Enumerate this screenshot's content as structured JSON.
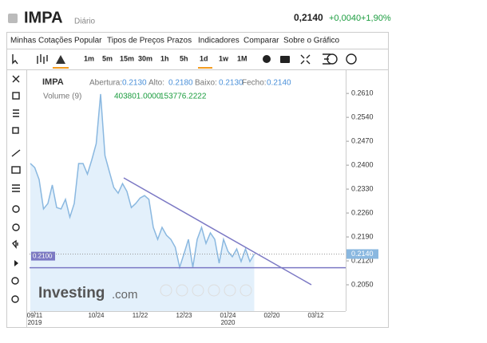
{
  "header": {
    "symbol": "IMPA",
    "period": "Diário",
    "price": "0,2140",
    "change": "+0,0040",
    "change_pct": "+1,90%"
  },
  "menu": [
    "Minhas Cotações",
    "Popular",
    "Tipos de Preços",
    "Prazos",
    "Indicadores",
    "Comparar",
    "Sobre o Gráfico"
  ],
  "timeframes": [
    "1m",
    "5m",
    "15m",
    "30m",
    "1h",
    "5h",
    "1d",
    "1w",
    "1M"
  ],
  "legend": {
    "name": "IMPA",
    "open_label": "Abertura:",
    "open": "0.2130",
    "high_label": "Alto:",
    "high": "0.2180",
    "low_label": "Baixo:",
    "low": "0.2130",
    "close_label": "Fecho:",
    "close": "0.2140",
    "volume_label": "Volume (9)",
    "volume": "403801.0000",
    "volume_ma": "153776.2222"
  },
  "watermark": {
    "brand": "Investing",
    "suffix": ".com"
  },
  "chart_data": {
    "type": "line",
    "color": "#8ab8e0",
    "fill": "#e3f0fb",
    "x": [
      "",
      "09/11",
      "",
      "",
      "",
      "",
      "",
      "",
      "",
      "",
      "",
      "",
      "",
      "",
      "",
      "10/24",
      "",
      "",
      "",
      "",
      "",
      "",
      "",
      "",
      "",
      "11/22",
      "",
      "",
      "",
      "",
      "",
      "",
      "",
      "",
      "",
      "12/23",
      "",
      "",
      "",
      "",
      "",
      "",
      "",
      "",
      "",
      "01/24",
      "",
      "",
      "",
      "",
      "",
      "",
      "",
      "",
      "",
      "02/20",
      "",
      "",
      "",
      "",
      "",
      "",
      "",
      "",
      "",
      "03/12",
      "",
      "",
      "",
      "",
      "",
      ""
    ],
    "years": [
      null,
      "2019",
      null,
      null,
      null,
      null,
      null,
      null,
      null,
      null,
      null,
      null,
      null,
      null,
      null,
      null,
      null,
      null,
      null,
      null,
      null,
      null,
      null,
      null,
      null,
      null,
      null,
      null,
      null,
      null,
      null,
      null,
      null,
      null,
      null,
      null,
      null,
      null,
      null,
      null,
      null,
      null,
      null,
      null,
      null,
      "2020",
      null,
      null,
      null,
      null,
      null,
      null,
      null,
      null,
      null,
      null,
      null,
      null,
      null,
      null,
      null,
      null,
      null,
      null,
      null,
      null,
      null,
      null,
      null,
      null,
      null,
      null
    ],
    "values": [
      0.2405,
      0.2393,
      0.2358,
      0.2272,
      0.2288,
      0.2342,
      0.2276,
      0.2272,
      0.23,
      0.2248,
      0.2288,
      0.2405,
      0.2405,
      0.2374,
      0.2416,
      0.2463,
      0.2608,
      0.2428,
      0.2381,
      0.2335,
      0.2318,
      0.2346,
      0.2323,
      0.2276,
      0.2288,
      0.2304,
      0.2311,
      0.23,
      0.2218,
      0.2183,
      0.2218,
      0.2195,
      0.2183,
      0.216,
      0.2101,
      0.2141,
      0.2183,
      0.2101,
      0.2183,
      0.2218,
      0.2171,
      0.2202,
      0.2183,
      0.2113,
      0.2183,
      0.2148,
      0.2132,
      0.2155,
      0.2118,
      0.2155,
      0.2118,
      0.214,
      null,
      null,
      null,
      null,
      null,
      null,
      null,
      null,
      null,
      null,
      null,
      null,
      null,
      null,
      null,
      null,
      null,
      null,
      null,
      null
    ],
    "ylim": [
      0.1973,
      0.2678
    ],
    "yticks": [
      {
        "value": 0.205,
        "label": "0.2050"
      },
      {
        "value": 0.212,
        "label": "0.2120"
      },
      {
        "value": 0.219,
        "label": "0.2190"
      },
      {
        "value": 0.226,
        "label": "0.2260"
      },
      {
        "value": 0.233,
        "label": "0.2330"
      },
      {
        "value": 0.24,
        "label": "0.2400"
      },
      {
        "value": 0.247,
        "label": "0.2470"
      },
      {
        "value": 0.254,
        "label": "0.2540"
      },
      {
        "value": 0.261,
        "label": "0.2610"
      }
    ],
    "hline": {
      "value": 0.21,
      "label": "0.2100",
      "color": "#7b78c4"
    },
    "last": {
      "value": 0.214,
      "label": "0.2140",
      "color": "#8ab8e0"
    }
  }
}
